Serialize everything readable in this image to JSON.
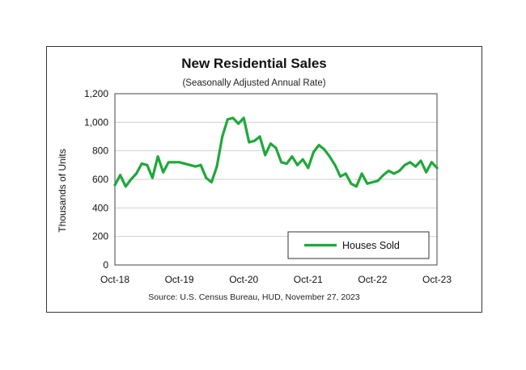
{
  "chart_data": {
    "type": "line",
    "title": "New Residential Sales",
    "subtitle": "(Seasonally Adjusted Annual Rate)",
    "ylabel": "Thousands of Units",
    "xlabel": "",
    "source": "Source:  U.S. Census Bureau, HUD, November 27, 2023",
    "ylim": [
      0,
      1200
    ],
    "yticks": [
      "0",
      "200",
      "400",
      "600",
      "800",
      "1,000",
      "1,200"
    ],
    "ytick_values": [
      0,
      200,
      400,
      600,
      800,
      1000,
      1200
    ],
    "xticks": [
      "Oct-18",
      "Oct-19",
      "Oct-20",
      "Oct-21",
      "Oct-22",
      "Oct-23"
    ],
    "xtick_values": [
      0,
      12,
      24,
      36,
      48,
      60
    ],
    "xlim": [
      0,
      60
    ],
    "grid": "horizontal",
    "legend": {
      "placement": "bottom-right",
      "entries": [
        "Houses Sold"
      ]
    },
    "series": [
      {
        "name": "Houses Sold",
        "color": "#1fa83a",
        "x": [
          0,
          1,
          2,
          3,
          4,
          5,
          6,
          7,
          8,
          9,
          10,
          11,
          12,
          13,
          14,
          15,
          16,
          17,
          18,
          19,
          20,
          21,
          22,
          23,
          24,
          25,
          26,
          27,
          28,
          29,
          30,
          31,
          32,
          33,
          34,
          35,
          36,
          37,
          38,
          39,
          40,
          41,
          42,
          43,
          44,
          45,
          46,
          47,
          48,
          49,
          50,
          51,
          52,
          53,
          54,
          55,
          56,
          57,
          58,
          59,
          60
        ],
        "values": [
          560,
          630,
          550,
          600,
          640,
          710,
          700,
          610,
          760,
          650,
          720,
          720,
          720,
          710,
          700,
          690,
          700,
          610,
          580,
          690,
          900,
          1020,
          1030,
          990,
          1030,
          860,
          870,
          900,
          770,
          850,
          820,
          720,
          710,
          760,
          700,
          740,
          680,
          790,
          840,
          810,
          760,
          700,
          620,
          640,
          570,
          550,
          640,
          570,
          580,
          590,
          630,
          660,
          640,
          660,
          700,
          720,
          690,
          730,
          650,
          720,
          680
        ]
      }
    ]
  }
}
